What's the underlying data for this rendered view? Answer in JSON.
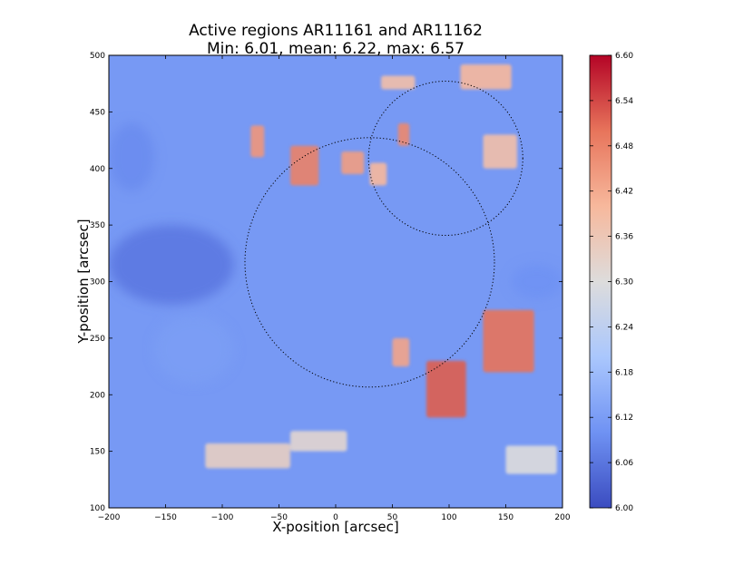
{
  "chart_data": {
    "type": "heatmap",
    "title": "Active regions AR11161 and AR11162",
    "subtitle": "Min: 6.01, mean: 6.22, max: 6.57",
    "xlabel": "X-position [arcsec]",
    "ylabel": "Y-position [arcsec]",
    "xlim": [
      -200,
      200
    ],
    "ylim": [
      100,
      500
    ],
    "xticks": [
      -200,
      -150,
      -100,
      -50,
      0,
      50,
      100,
      150,
      200
    ],
    "yticks": [
      100,
      150,
      200,
      250,
      300,
      350,
      400,
      450,
      500
    ],
    "colorbar": {
      "min": 6.0,
      "max": 6.6,
      "ticks": [
        "6.00",
        "6.06",
        "6.12",
        "6.18",
        "6.24",
        "6.30",
        "6.36",
        "6.42",
        "6.48",
        "6.54",
        "6.60"
      ],
      "colormap": "coolwarm",
      "colors": [
        "#3b4cc0",
        "#6f92f3",
        "#aac7fd",
        "#dddcdc",
        "#f7b89c",
        "#e7745b",
        "#b40426"
      ]
    },
    "circles": [
      {
        "center": [
          30,
          317
        ],
        "radius": 110
      },
      {
        "center": [
          97,
          409
        ],
        "radius": 68
      }
    ],
    "hot_regions": [
      {
        "x": 55,
        "y": 420,
        "w": 10,
        "h": 20,
        "value": 6.47
      },
      {
        "x": -75,
        "y": 410,
        "w": 12,
        "h": 28,
        "value": 6.45
      },
      {
        "x": -40,
        "y": 385,
        "w": 25,
        "h": 35,
        "value": 6.48
      },
      {
        "x": 5,
        "y": 395,
        "w": 20,
        "h": 20,
        "value": 6.44
      },
      {
        "x": 30,
        "y": 385,
        "w": 15,
        "h": 20,
        "value": 6.4
      },
      {
        "x": 40,
        "y": 470,
        "w": 30,
        "h": 12,
        "value": 6.38
      },
      {
        "x": 110,
        "y": 470,
        "w": 45,
        "h": 22,
        "value": 6.4
      },
      {
        "x": 130,
        "y": 400,
        "w": 30,
        "h": 30,
        "value": 6.38
      },
      {
        "x": 130,
        "y": 220,
        "w": 45,
        "h": 55,
        "value": 6.5
      },
      {
        "x": 80,
        "y": 180,
        "w": 35,
        "h": 50,
        "value": 6.52
      },
      {
        "x": 50,
        "y": 225,
        "w": 15,
        "h": 25,
        "value": 6.43
      },
      {
        "x": -115,
        "y": 135,
        "w": 75,
        "h": 22,
        "value": 6.34
      },
      {
        "x": -40,
        "y": 150,
        "w": 50,
        "h": 18,
        "value": 6.32
      },
      {
        "x": 150,
        "y": 130,
        "w": 45,
        "h": 25,
        "value": 6.3
      }
    ],
    "cool_regions": [
      {
        "x": -200,
        "y": 280,
        "w": 110,
        "h": 70,
        "value": 6.06
      },
      {
        "x": -200,
        "y": 380,
        "w": 40,
        "h": 60,
        "value": 6.09
      },
      {
        "x": 155,
        "y": 285,
        "w": 45,
        "h": 30,
        "value": 6.1
      },
      {
        "x": -160,
        "y": 210,
        "w": 70,
        "h": 60,
        "value": 6.12
      }
    ]
  }
}
